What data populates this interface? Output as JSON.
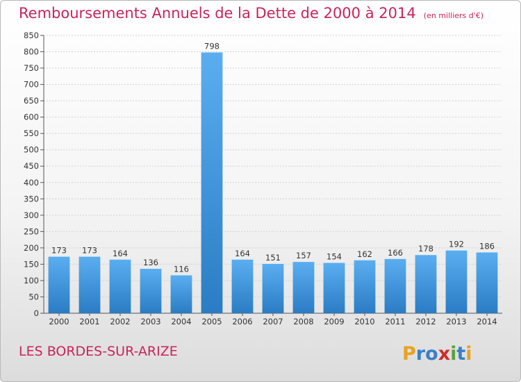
{
  "chart_data": {
    "type": "bar",
    "title": "Remboursements Annuels de la Dette de 2000 à 2014",
    "unit": "(en milliers d'€)",
    "categories": [
      "2000",
      "2001",
      "2002",
      "2003",
      "2004",
      "2005",
      "2006",
      "2007",
      "2008",
      "2009",
      "2010",
      "2011",
      "2012",
      "2013",
      "2014"
    ],
    "values": [
      173,
      173,
      164,
      136,
      116,
      798,
      164,
      151,
      157,
      154,
      162,
      166,
      178,
      192,
      186
    ],
    "ylim": [
      0,
      850
    ],
    "yticks": [
      0,
      50,
      100,
      150,
      200,
      250,
      300,
      350,
      400,
      450,
      500,
      550,
      600,
      650,
      700,
      750,
      800,
      850
    ],
    "grid": true,
    "bar_color": "#3c92d8",
    "title_color": "#c8245a"
  },
  "footer": {
    "city": "LES BORDES-SUR-ARIZE",
    "brand": "Proxiti"
  }
}
